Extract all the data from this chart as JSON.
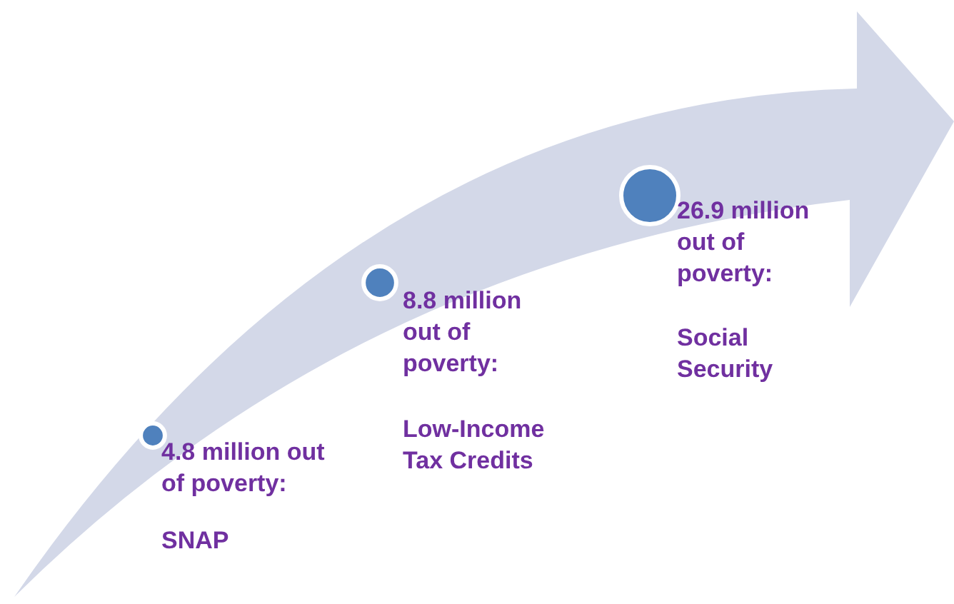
{
  "chart_data": {
    "type": "other",
    "categories": [
      "SNAP",
      "Low-Income Tax Credits",
      "Social Security"
    ],
    "values": [
      4.8,
      8.8,
      26.9
    ],
    "value_labels": [
      "4.8 million out of poverty:",
      "8.8 million out of poverty:",
      "26.9 million out of poverty:"
    ],
    "color": "#4f81bd"
  }
}
